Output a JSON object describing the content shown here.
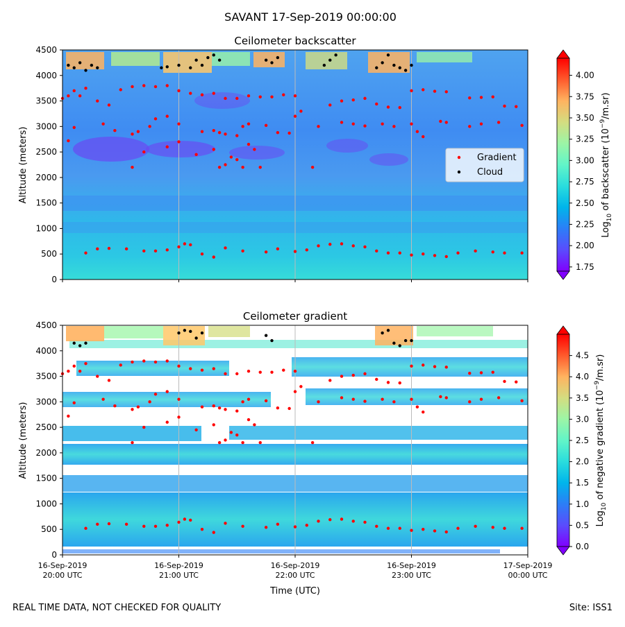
{
  "title": "SAVANT 17-Sep-2019 00:00:00",
  "footer": {
    "left": "REAL TIME DATA, NOT CHECKED FOR QUALITY",
    "right": "Site: ISS1"
  },
  "colors": {
    "gradient_marker": "#ff0000",
    "cloud_marker": "#000000",
    "colormap": [
      "#8000ff",
      "#5a4cfd",
      "#2c7ef7",
      "#00b5eb",
      "#2adddd",
      "#62f5c8",
      "#9cf5a6",
      "#d4dd80",
      "#ffb360",
      "#ff7a3c",
      "#ff2a14",
      "#ff0000"
    ]
  },
  "chart_data": [
    {
      "type": "heatmap",
      "title": "Ceilometer backscatter",
      "ylabel": "Altitude (meters)",
      "xlabel": "",
      "ylim": [
        0,
        4500
      ],
      "yticks": [
        "0",
        "500",
        "1000",
        "1500",
        "2000",
        "2500",
        "3000",
        "3500",
        "4000",
        "4500"
      ],
      "xticks": [
        "",
        "",
        "",
        "",
        ""
      ],
      "xlim": [
        "16-Sep-2019 20:00 UTC",
        "17-Sep-2019 00:00 UTC"
      ],
      "grid": "vertical lines at hourly ticks",
      "colorbar": {
        "label": "Log10 of backscatter (10^-9/m.sr)",
        "label_parts": [
          "Log",
          "10",
          " of backscatter (10",
          "−9",
          "/m.sr)"
        ],
        "range": [
          1.7,
          4.2
        ],
        "ticks": [
          "1.75",
          "2.00",
          "2.25",
          "2.50",
          "2.75",
          "3.00",
          "3.25",
          "3.50",
          "3.75",
          "4.00"
        ]
      },
      "legend": {
        "placement": "center-right",
        "entries": [
          "Gradient",
          "Cloud"
        ]
      },
      "series": [
        {
          "name": "Gradient",
          "hours": [
            0.2,
            0.3,
            0.4,
            0.55,
            0.7,
            0.8,
            0.9,
            1.0,
            1.05,
            1.1,
            1.2,
            1.3,
            1.4,
            1.55,
            1.75,
            1.85,
            2.0,
            2.1,
            2.2,
            2.3,
            2.4,
            2.5,
            2.6,
            2.7,
            2.8,
            2.9,
            3.0,
            3.1,
            3.2,
            3.3,
            3.4,
            3.55,
            3.7,
            3.8,
            3.95
          ],
          "altitudes": [
            520,
            600,
            610,
            600,
            560,
            560,
            580,
            640,
            700,
            680,
            500,
            440,
            620,
            560,
            540,
            600,
            550,
            580,
            660,
            690,
            700,
            660,
            640,
            560,
            520,
            520,
            480,
            500,
            470,
            450,
            520,
            560,
            540,
            520,
            520
          ]
        },
        {
          "name": "Gradient",
          "hours": [
            0.0,
            0.05,
            0.1,
            0.15,
            0.2,
            0.3,
            0.4,
            0.5,
            0.6,
            0.7,
            0.8,
            0.9,
            1.0,
            1.1,
            1.2,
            1.3,
            1.4,
            1.5,
            1.6,
            1.7,
            1.8,
            1.9,
            2.0,
            2.3,
            2.4,
            2.5,
            2.6,
            2.7,
            2.8,
            2.9,
            3.0,
            3.1,
            3.2,
            3.3,
            3.5,
            3.6,
            3.7,
            3.8,
            3.9
          ],
          "altitudes": [
            3550,
            3600,
            3700,
            3600,
            3750,
            3500,
            3420,
            3720,
            3780,
            3800,
            3780,
            3800,
            3700,
            3650,
            3620,
            3650,
            3550,
            3550,
            3600,
            3580,
            3580,
            3620,
            3600,
            3420,
            3500,
            3520,
            3550,
            3440,
            3380,
            3370,
            3700,
            3720,
            3690,
            3680,
            3560,
            3570,
            3580,
            3400,
            3390
          ]
        },
        {
          "name": "Gradient",
          "hours": [
            0.1,
            0.35,
            0.45,
            0.6,
            0.65,
            0.75,
            0.8,
            0.9,
            1.0,
            1.2,
            1.3,
            1.35,
            1.4,
            1.5,
            1.55,
            1.6,
            1.75,
            1.85,
            1.95,
            2.0,
            2.05,
            2.2,
            2.4,
            2.5,
            2.6,
            2.75,
            2.85,
            3.0,
            3.05,
            3.1,
            3.25,
            3.3,
            3.5,
            3.6,
            3.75,
            3.95
          ],
          "altitudes": [
            2980,
            3050,
            2920,
            2850,
            2900,
            3000,
            3150,
            3200,
            3050,
            2900,
            2920,
            2880,
            2850,
            2820,
            3000,
            3050,
            3020,
            2880,
            2870,
            3200,
            3300,
            3000,
            3080,
            3050,
            3010,
            3050,
            3000,
            3050,
            2900,
            2800,
            3100,
            3080,
            3000,
            3050,
            3080,
            3020
          ]
        },
        {
          "name": "Gradient",
          "hours": [
            0.05,
            0.6,
            0.7,
            0.9,
            1.0,
            1.15,
            1.3,
            1.35,
            1.4,
            1.45,
            1.5,
            1.55,
            1.6,
            1.65,
            1.7,
            2.15
          ],
          "altitudes": [
            2720,
            2200,
            2500,
            2600,
            2700,
            2450,
            2550,
            2200,
            2250,
            2400,
            2350,
            2200,
            2650,
            2550,
            2200,
            2200
          ]
        },
        {
          "name": "Cloud",
          "hours": [
            0.05,
            0.1,
            0.15,
            0.2,
            0.25,
            0.3,
            0.85,
            0.9,
            1.0,
            1.1,
            1.15,
            1.2,
            1.25,
            1.3,
            1.35,
            1.75,
            1.8,
            1.85,
            2.25,
            2.3,
            2.35,
            2.7,
            2.75,
            2.8,
            2.85,
            2.9,
            2.95,
            3.0
          ],
          "altitudes": [
            4200,
            4150,
            4250,
            4100,
            4200,
            4150,
            4150,
            4170,
            4200,
            4150,
            4300,
            4200,
            4350,
            4400,
            4300,
            4300,
            4250,
            4350,
            4200,
            4300,
            4400,
            4150,
            4250,
            4400,
            4200,
            4150,
            4100,
            4200
          ]
        }
      ]
    },
    {
      "type": "heatmap",
      "title": "Ceilometer gradient",
      "ylabel": "Altitude (meters)",
      "xlabel": "Time (UTC)",
      "ylim": [
        0,
        4500
      ],
      "yticks": [
        "0",
        "500",
        "1000",
        "1500",
        "2000",
        "2500",
        "3000",
        "3500",
        "4000",
        "4500"
      ],
      "xticks": [
        "16-Sep-2019\n20:00 UTC",
        "16-Sep-2019\n21:00 UTC",
        "16-Sep-2019\n22:00 UTC",
        "16-Sep-2019\n23:00 UTC",
        "17-Sep-2019\n00:00 UTC"
      ],
      "xlim": [
        "16-Sep-2019 20:00 UTC",
        "17-Sep-2019 00:00 UTC"
      ],
      "grid": "vertical lines at hourly ticks",
      "colorbar": {
        "label": "Log10 of negative gradient (10^-9/m.sr)",
        "label_parts": [
          "Log",
          "10",
          " of negative gradient (10",
          "−9",
          "/m.sr)"
        ],
        "range": [
          0,
          5.0
        ],
        "ticks": [
          "0.0",
          "0.5",
          "1.0",
          "1.5",
          "2.0",
          "2.5",
          "3.0",
          "3.5",
          "4.0",
          "4.5"
        ]
      },
      "series": [
        {
          "name": "Gradient",
          "hours": [
            0.2,
            0.3,
            0.4,
            0.55,
            0.7,
            0.8,
            0.9,
            1.0,
            1.05,
            1.1,
            1.2,
            1.3,
            1.4,
            1.55,
            1.75,
            1.85,
            2.0,
            2.1,
            2.2,
            2.3,
            2.4,
            2.5,
            2.6,
            2.7,
            2.8,
            2.9,
            3.0,
            3.1,
            3.2,
            3.3,
            3.4,
            3.55,
            3.7,
            3.8,
            3.95
          ],
          "altitudes": [
            520,
            600,
            610,
            600,
            560,
            560,
            580,
            640,
            700,
            680,
            500,
            440,
            620,
            560,
            540,
            600,
            550,
            580,
            660,
            690,
            700,
            660,
            640,
            560,
            520,
            520,
            480,
            500,
            470,
            450,
            520,
            560,
            540,
            520,
            520
          ]
        },
        {
          "name": "Gradient",
          "hours": [
            0.0,
            0.05,
            0.1,
            0.15,
            0.2,
            0.3,
            0.4,
            0.5,
            0.6,
            0.7,
            0.8,
            0.9,
            1.0,
            1.1,
            1.2,
            1.3,
            1.4,
            1.5,
            1.6,
            1.7,
            1.8,
            1.9,
            2.0,
            2.3,
            2.4,
            2.5,
            2.6,
            2.7,
            2.8,
            2.9,
            3.0,
            3.1,
            3.2,
            3.3,
            3.5,
            3.6,
            3.7,
            3.8,
            3.9
          ],
          "altitudes": [
            3550,
            3600,
            3700,
            3600,
            3750,
            3500,
            3420,
            3720,
            3780,
            3800,
            3780,
            3800,
            3700,
            3650,
            3620,
            3650,
            3550,
            3550,
            3600,
            3580,
            3580,
            3620,
            3600,
            3420,
            3500,
            3520,
            3550,
            3440,
            3380,
            3370,
            3700,
            3720,
            3690,
            3680,
            3560,
            3570,
            3580,
            3400,
            3390
          ]
        },
        {
          "name": "Gradient",
          "hours": [
            0.1,
            0.35,
            0.45,
            0.6,
            0.65,
            0.75,
            0.8,
            0.9,
            1.0,
            1.2,
            1.3,
            1.35,
            1.4,
            1.5,
            1.55,
            1.6,
            1.75,
            1.85,
            1.95,
            2.0,
            2.05,
            2.2,
            2.4,
            2.5,
            2.6,
            2.75,
            2.85,
            3.0,
            3.05,
            3.1,
            3.25,
            3.3,
            3.5,
            3.6,
            3.75,
            3.95
          ],
          "altitudes": [
            2980,
            3050,
            2920,
            2850,
            2900,
            3000,
            3150,
            3200,
            3050,
            2900,
            2920,
            2880,
            2850,
            2820,
            3000,
            3050,
            3020,
            2880,
            2870,
            3200,
            3300,
            3000,
            3080,
            3050,
            3010,
            3050,
            3000,
            3050,
            2900,
            2800,
            3100,
            3080,
            3000,
            3050,
            3080,
            3020
          ]
        },
        {
          "name": "Gradient",
          "hours": [
            0.05,
            0.6,
            0.7,
            0.9,
            1.0,
            1.15,
            1.3,
            1.35,
            1.4,
            1.45,
            1.5,
            1.55,
            1.6,
            1.65,
            1.7,
            2.15
          ],
          "altitudes": [
            2720,
            2200,
            2500,
            2600,
            2700,
            2450,
            2550,
            2200,
            2250,
            2400,
            2350,
            2200,
            2650,
            2550,
            2200,
            2200
          ]
        },
        {
          "name": "Cloud",
          "hours": [
            0.1,
            0.15,
            0.2,
            1.0,
            1.05,
            1.1,
            1.15,
            1.2,
            1.75,
            1.8,
            2.75,
            2.8,
            2.85,
            2.9,
            2.95,
            3.0
          ],
          "altitudes": [
            4150,
            4100,
            4150,
            4350,
            4400,
            4380,
            4250,
            4350,
            4300,
            4200,
            4350,
            4400,
            4150,
            4100,
            4200,
            4200
          ]
        }
      ]
    }
  ]
}
